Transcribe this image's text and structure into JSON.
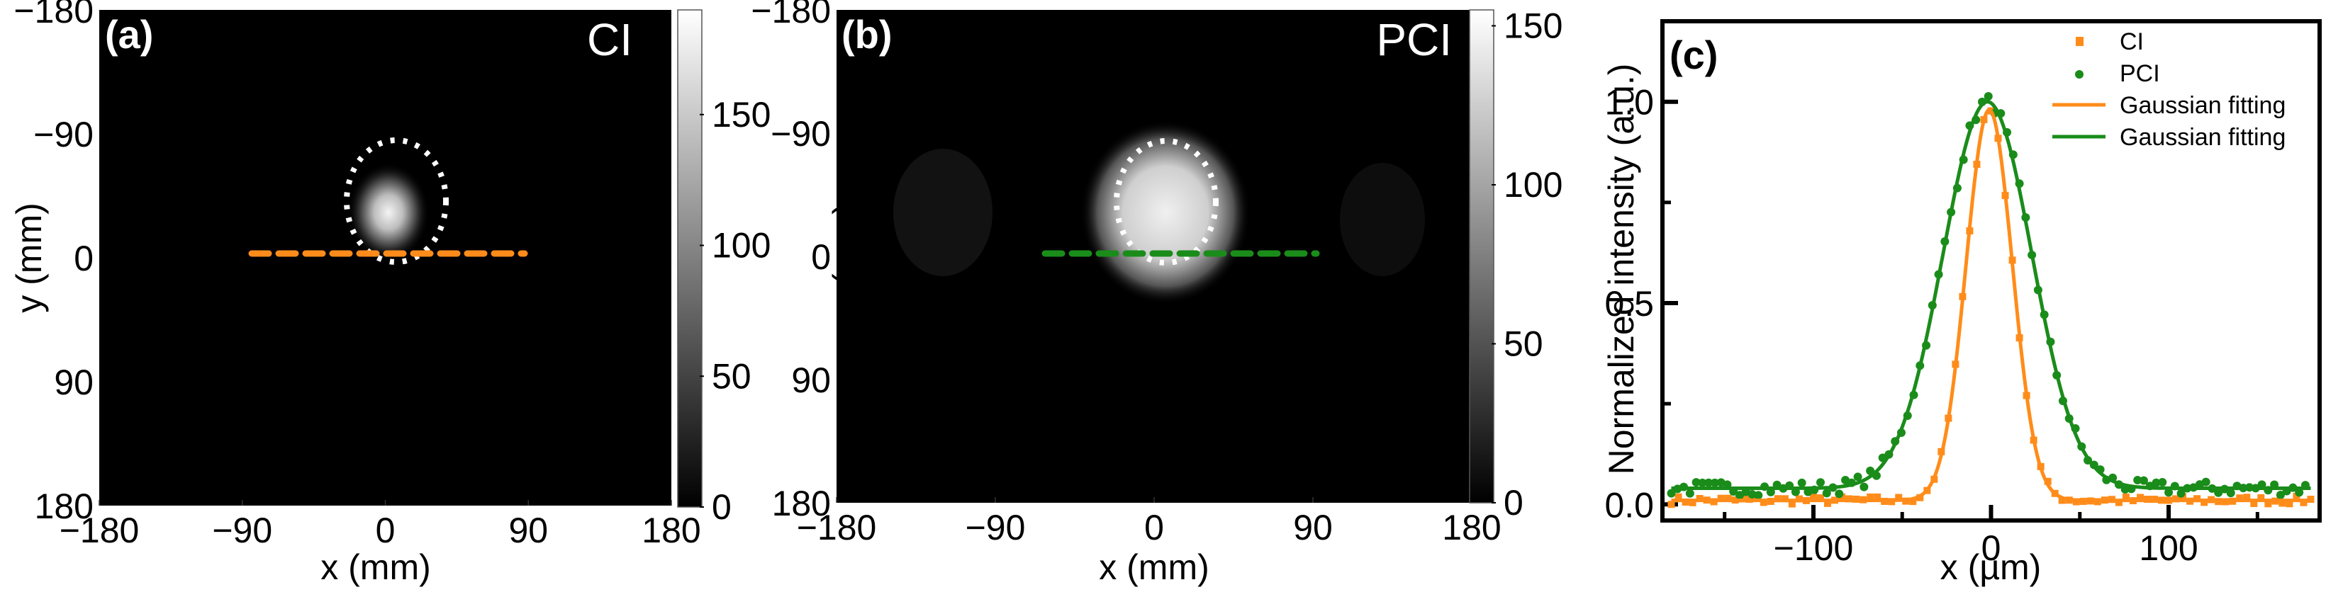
{
  "colors": {
    "ci": "#ff8c1a",
    "pci": "#1a8c1a",
    "ellipse": "#ffffff",
    "background": "#000000"
  },
  "chart_data": [
    {
      "id": "a",
      "type": "heatmap",
      "panel_label": "(a)",
      "title": "CI",
      "xlabel": "x (mm)",
      "ylabel": "y (mm)",
      "x_ticks": [
        "−180",
        "−90",
        "0",
        "90",
        "180"
      ],
      "y_ticks": [
        "−180",
        "−90",
        "0",
        "90",
        "180"
      ],
      "xlim": [
        -180,
        180
      ],
      "ylim": [
        -180,
        180
      ],
      "colorbar": {
        "ticks": [
          "0",
          "50",
          "100",
          "150"
        ],
        "range": [
          0,
          190
        ]
      },
      "spot": {
        "cx": -5,
        "cy": -5,
        "sigma_x": 14,
        "sigma_y": 18,
        "peak": 190
      },
      "line_profile": {
        "y": 0,
        "x_from": -95,
        "x_to": 95,
        "color_key": "ci",
        "style": "dashed"
      },
      "ellipse": {
        "cx": 0,
        "cy": -3,
        "rx": 32,
        "ry": 38,
        "style": "dotted"
      }
    },
    {
      "id": "b",
      "type": "heatmap",
      "panel_label": "(b)",
      "title": "PCI",
      "xlabel": "x (mm)",
      "ylabel": "y (mm)",
      "x_ticks": [
        "−180",
        "−90",
        "0",
        "90",
        "180"
      ],
      "y_ticks": [
        "−180",
        "−90",
        "0",
        "90",
        "180"
      ],
      "xlim": [
        -180,
        180
      ],
      "ylim": [
        -180,
        180
      ],
      "colorbar": {
        "ticks": [
          "0",
          "50",
          "100",
          "150"
        ],
        "range": [
          0,
          155
        ]
      },
      "spot": {
        "cx": -5,
        "cy": -3,
        "sigma_x": 30,
        "sigma_y": 36,
        "peak": 150
      },
      "line_profile": {
        "y": 0,
        "x_from": -110,
        "x_to": 85,
        "color_key": "pci",
        "style": "dashed"
      },
      "ellipse": {
        "cx": -5,
        "cy": -3,
        "rx": 38,
        "ry": 48,
        "style": "dotted"
      }
    },
    {
      "id": "c",
      "type": "scatter",
      "panel_label": "(c)",
      "xlabel": "x (µm)",
      "ylabel": "Normalized intensity (a.u.)",
      "xlim": [
        -185,
        185
      ],
      "ylim": [
        -0.04,
        1.2
      ],
      "x_ticks": [
        -100,
        0,
        100
      ],
      "x_tick_labels": [
        "−100",
        "0",
        "100"
      ],
      "x_minor_ticks": [
        -150,
        -50,
        50,
        150
      ],
      "y_ticks": [
        0.0,
        0.5,
        1.0
      ],
      "y_tick_labels": [
        "0.0",
        "0.5",
        "1.0"
      ],
      "y_minor_ticks": [
        0.25,
        0.75
      ],
      "legend": [
        {
          "label": "CI",
          "marker": "square",
          "color_key": "ci"
        },
        {
          "label": "PCI",
          "marker": "circle",
          "color_key": "pci"
        },
        {
          "label": "Gaussian fitting",
          "marker": "line",
          "color_key": "ci"
        },
        {
          "label": "Gaussian fitting",
          "marker": "line",
          "color_key": "pci"
        }
      ],
      "series": [
        {
          "name": "CI",
          "kind": "points",
          "marker": "square",
          "color_key": "ci",
          "gauss": {
            "amp": 0.97,
            "center": -1,
            "sigma": 13,
            "offset": 0.01
          },
          "noise": 0.02,
          "step": 4
        },
        {
          "name": "PCI",
          "kind": "points",
          "marker": "circle",
          "color_key": "pci",
          "gauss": {
            "amp": 0.96,
            "center": -2,
            "sigma": 25,
            "offset": 0.04
          },
          "noise": 0.035,
          "step": 3.5
        },
        {
          "name": "Gaussian fitting (CI)",
          "kind": "line",
          "color_key": "ci",
          "gauss": {
            "amp": 0.97,
            "center": -1,
            "sigma": 13,
            "offset": 0.01
          }
        },
        {
          "name": "Gaussian fitting (PCI)",
          "kind": "line",
          "color_key": "pci",
          "gauss": {
            "amp": 0.96,
            "center": -2,
            "sigma": 25,
            "offset": 0.04
          }
        }
      ]
    }
  ]
}
